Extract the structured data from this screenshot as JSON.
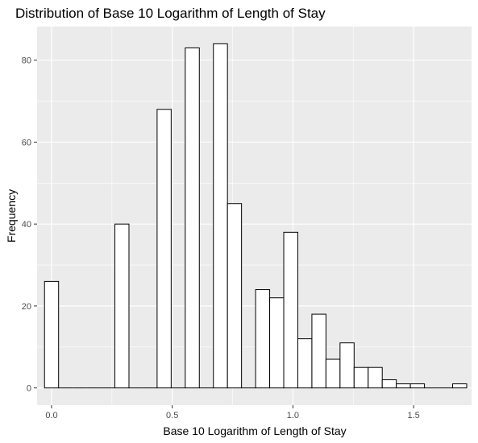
{
  "chart_data": {
    "type": "bar",
    "title": "Distribution of Base 10 Logarithm of Length of Stay",
    "xlabel": "Base 10 Logarithm of Length of Stay",
    "ylabel": "Frequency",
    "xlim": [
      -0.06,
      1.74
    ],
    "ylim": [
      -4.2,
      88.2
    ],
    "x_ticks": [
      0.0,
      0.5,
      1.0,
      1.5
    ],
    "x_tick_labels": [
      "0.0",
      "0.5",
      "1.0",
      "1.5"
    ],
    "y_ticks": [
      0,
      20,
      40,
      60,
      80
    ],
    "y_tick_labels": [
      "0",
      "20",
      "40",
      "60",
      "80"
    ],
    "grid": true,
    "bin_width": 0.0583,
    "bin_centers": [
      0.0,
      0.0583,
      0.1166,
      0.1749,
      0.2332,
      0.2915,
      0.3498,
      0.4081,
      0.4664,
      0.5247,
      0.583,
      0.6413,
      0.6996,
      0.7579,
      0.8162,
      0.8745,
      0.9328,
      0.9911,
      1.0494,
      1.1077,
      1.166,
      1.2243,
      1.2826,
      1.3409,
      1.3992,
      1.4575,
      1.5158,
      1.5741,
      1.6324,
      1.6907
    ],
    "values": [
      26,
      0,
      0,
      0,
      0,
      40,
      0,
      0,
      68,
      0,
      83,
      0,
      84,
      45,
      0,
      24,
      22,
      38,
      12,
      18,
      7,
      11,
      5,
      5,
      2,
      1,
      1,
      0,
      0,
      1
    ],
    "colors": {
      "panel_background": "#ebebeb",
      "gridline": "#ffffff",
      "bar_fill": "#ffffff",
      "bar_outline": "#000000",
      "tick_label": "#4d4d4d",
      "tick_mark": "#333333"
    }
  }
}
